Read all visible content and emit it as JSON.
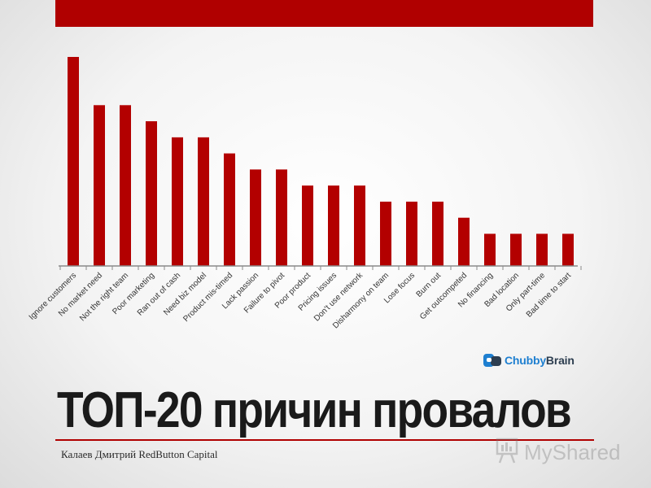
{
  "slide": {
    "title": "ТОП-20 причин провалов",
    "footer_credit": "Калаев Дмитрий RedButton Capital",
    "colors": {
      "accent": "#b00000",
      "bar": "#b30000",
      "title": "#1a1a1a"
    }
  },
  "brand_logo": {
    "part1": "Chubby",
    "part2": "Brain",
    "icon": "chubbybrain-logo-icon"
  },
  "watermark": {
    "text": "MyShared",
    "icon": "presentation-board-icon"
  },
  "chart_data": {
    "type": "bar",
    "title": "",
    "xlabel": "",
    "ylabel": "",
    "ylim": [
      0,
      13
    ],
    "grid": false,
    "categories": [
      "Ignore customers",
      "No market need",
      "Not the right team",
      "Poor marketing",
      "Ran out of cash",
      "Need biz model",
      "Product mis-timed",
      "Lack passion",
      "Failure to pivot",
      "Poor product",
      "Pricing issues",
      "Don't use network",
      "Disharmony on team",
      "Lose focus",
      "Burn out",
      "Get outcompeted",
      "No financing",
      "Bad location",
      "Only part-time",
      "Bad time to start"
    ],
    "values": [
      13,
      10,
      10,
      9,
      8,
      8,
      7,
      6,
      6,
      5,
      5,
      5,
      4,
      4,
      4,
      3,
      2,
      2,
      2,
      2
    ]
  }
}
